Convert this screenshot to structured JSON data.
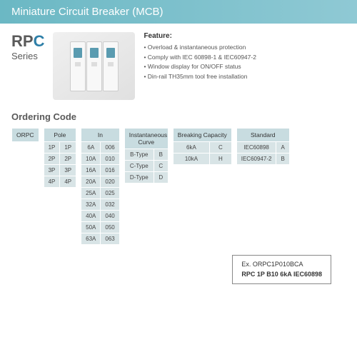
{
  "banner": {
    "title": "Miniature Circuit Breaker (MCB)"
  },
  "series": {
    "prefix": "RP",
    "highlight": "C",
    "sub": "Series"
  },
  "feature": {
    "title": "Feature:",
    "items": [
      "Overload & instantaneous protection",
      "Comply with IEC 60898-1 & IEC60947-2",
      "Window display for ON/OFF status",
      "Din-rail TH35mm tool free installation"
    ]
  },
  "ordering": {
    "title": "Ordering Code",
    "tables": [
      {
        "headers": [
          "ORPC"
        ],
        "rows": []
      },
      {
        "headers": [
          "Pole"
        ],
        "rows": [
          [
            "1P",
            "1P"
          ],
          [
            "2P",
            "2P"
          ],
          [
            "3P",
            "3P"
          ],
          [
            "4P",
            "4P"
          ]
        ]
      },
      {
        "headers": [
          "In"
        ],
        "rows": [
          [
            "6A",
            "006"
          ],
          [
            "10A",
            "010"
          ],
          [
            "16A",
            "016"
          ],
          [
            "20A",
            "020"
          ],
          [
            "25A",
            "025"
          ],
          [
            "32A",
            "032"
          ],
          [
            "40A",
            "040"
          ],
          [
            "50A",
            "050"
          ],
          [
            "63A",
            "063"
          ]
        ]
      },
      {
        "headers": [
          "Instantaneous Curve"
        ],
        "rows": [
          [
            "B-Type",
            "B"
          ],
          [
            "C-Type",
            "C"
          ],
          [
            "D-Type",
            "D"
          ]
        ]
      },
      {
        "headers": [
          "Breaking Capacity"
        ],
        "rows": [
          [
            "6kA",
            "C"
          ],
          [
            "10kA",
            "H"
          ]
        ]
      },
      {
        "headers": [
          "Standard"
        ],
        "rows": [
          [
            "IEC60898",
            "A"
          ],
          [
            "IEC60947-2",
            "B"
          ]
        ]
      }
    ]
  },
  "example": {
    "line1": "Ex. ORPC1P010BCA",
    "line2": "RPC 1P B10 6kA IEC60898"
  }
}
